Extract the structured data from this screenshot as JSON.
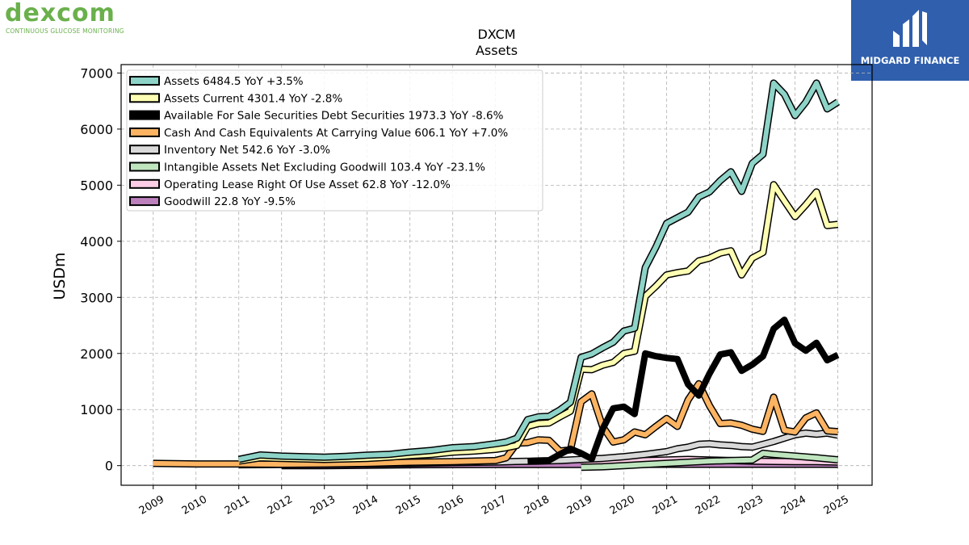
{
  "logos": {
    "left_word": "dexcom",
    "left_tagline": "CONTINUOUS GLUCOSE MONITORING",
    "right_name": "MIDGARD FINANCE"
  },
  "colors": {
    "dexcom_green": "#6ab04c",
    "midgard_blue": "#2f5fad"
  },
  "chart_data": {
    "type": "line",
    "title": "DXCM",
    "subtitle": "Assets",
    "ylabel": "USDm",
    "xlabel": "",
    "ylim": [
      -350,
      7150
    ],
    "xlim": [
      2008.25,
      2025.8
    ],
    "yticks": [
      0,
      1000,
      2000,
      3000,
      4000,
      5000,
      6000,
      7000
    ],
    "xticks": [
      2009,
      2010,
      2011,
      2012,
      2013,
      2014,
      2015,
      2016,
      2017,
      2018,
      2019,
      2020,
      2021,
      2022,
      2023,
      2024,
      2025
    ],
    "grid": true,
    "legend_position": "top-left",
    "series": [
      {
        "name": "Assets",
        "legend": "Assets  6484.5 YoY +3.5%",
        "color": "#8dd3c7",
        "width": 6,
        "x": [
          2011.0,
          2011.5,
          2012.0,
          2012.5,
          2013.0,
          2013.5,
          2014.0,
          2014.5,
          2015.0,
          2015.5,
          2016.0,
          2016.5,
          2017.0,
          2017.25,
          2017.5,
          2017.75,
          2018.0,
          2018.25,
          2018.5,
          2018.75,
          2019.0,
          2019.25,
          2019.5,
          2019.75,
          2020.0,
          2020.25,
          2020.5,
          2020.75,
          2021.0,
          2021.25,
          2021.5,
          2021.75,
          2022.0,
          2022.25,
          2022.5,
          2022.75,
          2023.0,
          2023.25,
          2023.5,
          2023.75,
          2024.0,
          2024.25,
          2024.5,
          2024.75,
          2025.0
        ],
        "y": [
          110,
          190,
          170,
          160,
          150,
          165,
          185,
          200,
          240,
          270,
          320,
          340,
          390,
          420,
          490,
          820,
          870,
          880,
          990,
          1130,
          1930,
          1990,
          2100,
          2200,
          2400,
          2450,
          3530,
          3900,
          4320,
          4420,
          4520,
          4790,
          4880,
          5080,
          5240,
          4890,
          5390,
          5550,
          6820,
          6620,
          6240,
          6480,
          6820,
          6360,
          6484
        ]
      },
      {
        "name": "Assets Current",
        "legend": "Assets Current  4301.4 YoY -2.8%",
        "color": "#ffffb3",
        "width": 6,
        "x": [
          2011.0,
          2011.5,
          2012.0,
          2012.5,
          2013.0,
          2013.5,
          2014.0,
          2014.5,
          2015.0,
          2015.5,
          2016.0,
          2016.5,
          2017.0,
          2017.25,
          2017.5,
          2017.75,
          2018.0,
          2018.25,
          2018.5,
          2018.75,
          2019.0,
          2019.25,
          2019.5,
          2019.75,
          2020.0,
          2020.25,
          2020.5,
          2020.75,
          2021.0,
          2021.25,
          2021.5,
          2021.75,
          2022.0,
          2022.25,
          2022.5,
          2022.75,
          2023.0,
          2023.25,
          2023.5,
          2023.75,
          2024.0,
          2024.25,
          2024.5,
          2024.75,
          2025.0
        ],
        "y": [
          80,
          140,
          130,
          120,
          110,
          120,
          130,
          150,
          180,
          200,
          240,
          260,
          290,
          320,
          360,
          700,
          750,
          760,
          870,
          970,
          1720,
          1710,
          1790,
          1840,
          2000,
          2040,
          3020,
          3200,
          3400,
          3440,
          3470,
          3650,
          3700,
          3790,
          3830,
          3400,
          3700,
          3800,
          5010,
          4720,
          4440,
          4650,
          4880,
          4280,
          4301
        ]
      },
      {
        "name": "Available For Sale Securities Debt Securities",
        "legend": "Available For Sale Securities Debt Securities  1973.3 YoY -8.6%",
        "color": "#000000",
        "width": 8,
        "x": [
          2017.75,
          2018.0,
          2018.25,
          2018.5,
          2018.75,
          2019.0,
          2019.25,
          2019.5,
          2019.75,
          2020.0,
          2020.25,
          2020.5,
          2020.75,
          2021.0,
          2021.25,
          2021.5,
          2021.75,
          2022.0,
          2022.25,
          2022.5,
          2022.75,
          2023.0,
          2023.25,
          2023.5,
          2023.75,
          2024.0,
          2024.25,
          2024.5,
          2024.75,
          2025.0
        ],
        "y": [
          80,
          90,
          95,
          200,
          300,
          220,
          120,
          650,
          1020,
          1050,
          920,
          2000,
          1950,
          1920,
          1900,
          1450,
          1250,
          1640,
          1980,
          2020,
          1690,
          1800,
          1950,
          2440,
          2600,
          2180,
          2050,
          2190,
          1880,
          1973
        ]
      },
      {
        "name": "Cash And Cash Equivalents At Carrying Value",
        "legend": "Cash And Cash Equivalents At Carrying Value  606.1 YoY +7.0%",
        "color": "#fdb462",
        "width": 6,
        "x": [
          2009.0,
          2010.0,
          2011.0,
          2012.0,
          2013.0,
          2014.0,
          2015.0,
          2016.0,
          2017.0,
          2017.25,
          2017.5,
          2017.75,
          2018.0,
          2018.25,
          2018.5,
          2018.75,
          2019.0,
          2019.25,
          2019.5,
          2019.75,
          2020.0,
          2020.25,
          2020.5,
          2020.75,
          2021.0,
          2021.25,
          2021.5,
          2021.75,
          2022.0,
          2022.25,
          2022.5,
          2022.75,
          2023.0,
          2023.25,
          2023.5,
          2023.75,
          2024.0,
          2024.25,
          2024.5,
          2024.75,
          2025.0
        ],
        "y": [
          40,
          30,
          30,
          25,
          30,
          40,
          60,
          70,
          90,
          140,
          400,
          410,
          460,
          450,
          260,
          280,
          1140,
          1280,
          700,
          420,
          460,
          600,
          550,
          700,
          840,
          700,
          1170,
          1460,
          1070,
          750,
          760,
          720,
          650,
          610,
          1220,
          630,
          600,
          850,
          940,
          620,
          606
        ]
      },
      {
        "name": "Inventory Net",
        "legend": "Inventory Net  542.6 YoY -3.0%",
        "color": "#d9d9d9",
        "width": 6,
        "x": [
          2011.0,
          2012.0,
          2013.0,
          2014.0,
          2015.0,
          2016.0,
          2017.0,
          2017.5,
          2018.0,
          2018.5,
          2019.0,
          2019.5,
          2020.0,
          2020.5,
          2021.0,
          2021.25,
          2021.5,
          2021.75,
          2022.0,
          2022.25,
          2022.5,
          2022.75,
          2023.0,
          2023.25,
          2023.5,
          2023.75,
          2024.0,
          2024.25,
          2024.5,
          2024.75,
          2025.0
        ],
        "y": [
          15,
          20,
          25,
          30,
          40,
          55,
          65,
          75,
          80,
          90,
          110,
          130,
          160,
          200,
          250,
          300,
          330,
          380,
          390,
          370,
          360,
          340,
          330,
          380,
          430,
          490,
          550,
          580,
          560,
          580,
          543
        ]
      },
      {
        "name": "Intangible Assets Net Excluding Goodwill",
        "legend": "Intangible Assets Net Excluding Goodwill  103.4 YoY -23.1%",
        "color": "#bfe5bf",
        "width": 6,
        "x": [
          2019.0,
          2019.5,
          2020.0,
          2020.5,
          2021.0,
          2021.5,
          2022.0,
          2022.5,
          2023.0,
          2023.25,
          2023.5,
          2024.0,
          2024.5,
          2025.0
        ],
        "y": [
          -30,
          -20,
          0,
          20,
          40,
          60,
          80,
          90,
          100,
          220,
          200,
          170,
          140,
          103
        ]
      },
      {
        "name": "Operating Lease Right Of Use Asset",
        "legend": "Operating Lease Right Of Use Asset  62.8 YoY -12.0%",
        "color": "#fccde5",
        "width": 6,
        "x": [
          2019.0,
          2019.5,
          2020.0,
          2020.5,
          2021.0,
          2021.5,
          2022.0,
          2022.5,
          2023.0,
          2023.5,
          2024.0,
          2024.5,
          2025.0
        ],
        "y": [
          40,
          60,
          80,
          90,
          100,
          110,
          100,
          90,
          80,
          75,
          72,
          70,
          63
        ]
      },
      {
        "name": "Goodwill",
        "legend": "Goodwill  22.8 YoY -9.5%",
        "color": "#bc80bd",
        "width": 6,
        "x": [
          2012.0,
          2013.0,
          2014.0,
          2015.0,
          2016.0,
          2017.0,
          2018.0,
          2019.0,
          2020.0,
          2021.0,
          2022.0,
          2023.0,
          2024.0,
          2025.0
        ],
        "y": [
          0,
          0,
          5,
          15,
          18,
          20,
          20,
          20,
          22,
          24,
          25,
          25,
          25,
          23
        ]
      }
    ]
  }
}
